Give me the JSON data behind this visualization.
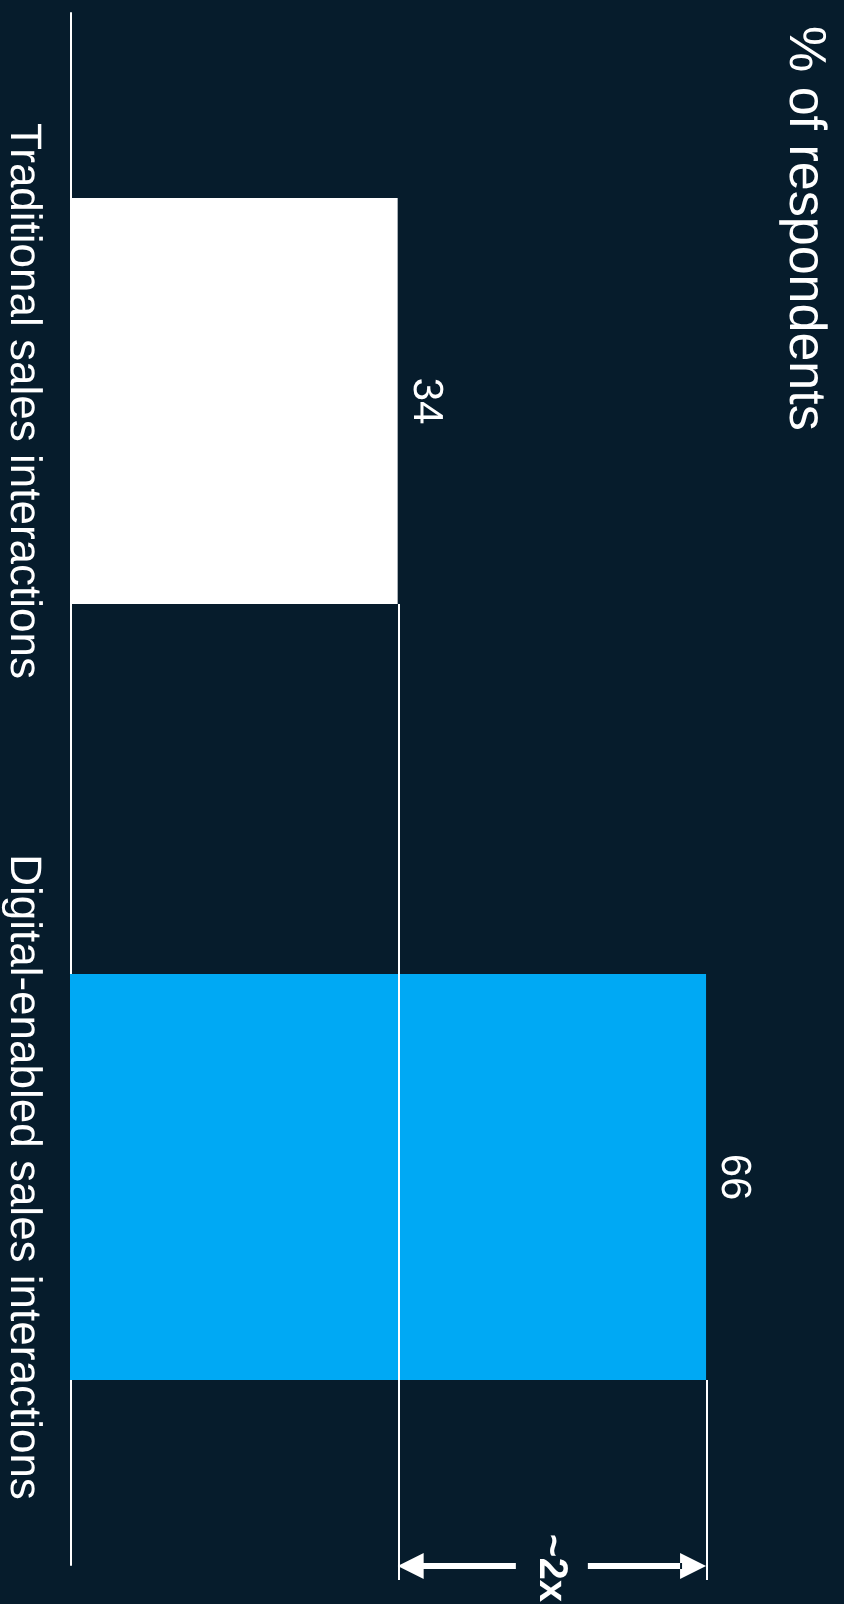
{
  "chart_data": {
    "type": "bar",
    "orientation": "horizontal",
    "title": "% of respondents",
    "categories": [
      "Traditional sales interactions",
      "Digital-enabled sales interactions"
    ],
    "values": [
      34,
      66
    ],
    "colors": [
      "#ffffff",
      "#00a9f4"
    ],
    "data_labels": true,
    "tick_labels": "y",
    "ref_lines": [
      {
        "axis": "x",
        "value": 34,
        "color": "#ffffff"
      },
      {
        "axis": "x",
        "value": 66,
        "color": "#ffffff"
      }
    ],
    "annotations": [
      "~2x"
    ]
  }
}
